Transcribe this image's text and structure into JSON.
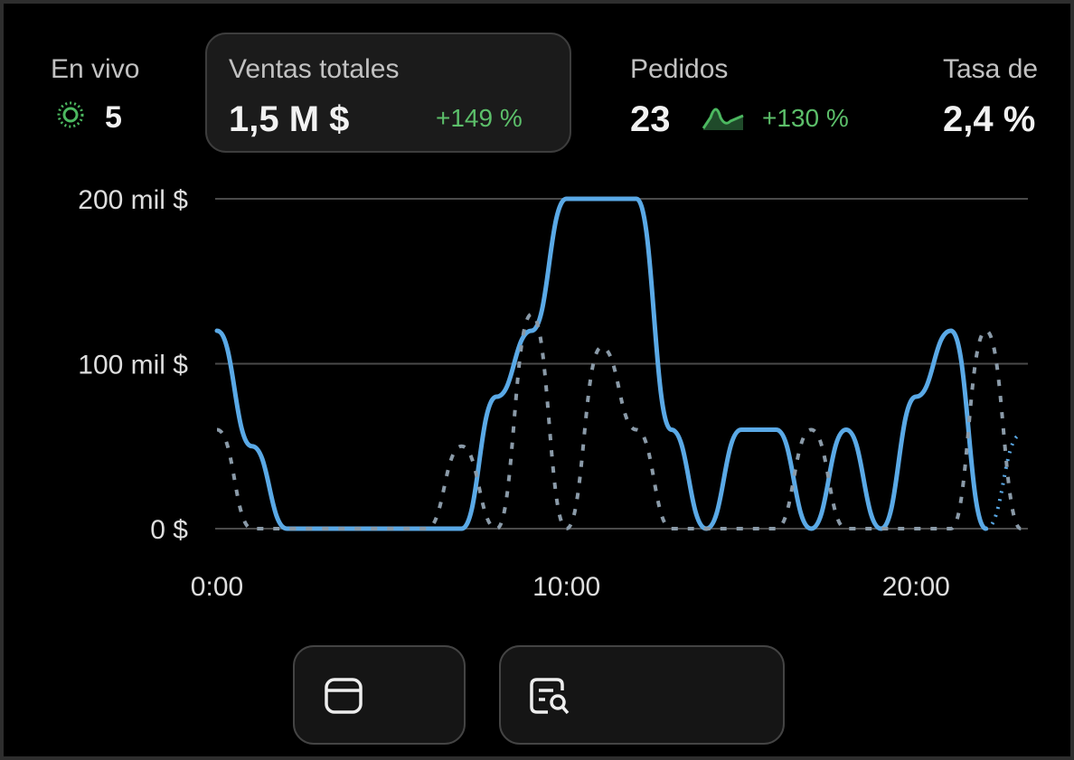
{
  "metrics": [
    {
      "label": "En vivo",
      "value": "5"
    },
    {
      "label": "Ventas totales",
      "value": "1,5 M $",
      "change": "+149 %"
    },
    {
      "label": "Pedidos",
      "value": "23",
      "change": "+130 %"
    },
    {
      "label": "Tasa de",
      "value": "2,4 %"
    }
  ],
  "chart_data": {
    "type": "line",
    "x": [
      0,
      1,
      2,
      3,
      4,
      5,
      6,
      7,
      8,
      9,
      10,
      11,
      12,
      13,
      14,
      15,
      16,
      17,
      18,
      19,
      20,
      21,
      22,
      23
    ],
    "xlim": [
      0,
      23.2
    ],
    "xticks": [
      {
        "value": 0,
        "label": "0:00"
      },
      {
        "value": 10,
        "label": "10:00"
      },
      {
        "value": 20,
        "label": "20:00"
      }
    ],
    "ylim": [
      0,
      200
    ],
    "yticks": [
      {
        "value": 0,
        "label": "0 $"
      },
      {
        "value": 100,
        "label": "100 mil $"
      },
      {
        "value": 200,
        "label": "200 mil $"
      }
    ],
    "grid": true,
    "series": [
      {
        "color": "#5aa9e6",
        "style": "solid",
        "values": [
          120,
          50,
          0,
          0,
          0,
          0,
          0,
          0,
          80,
          120,
          200,
          200,
          200,
          60,
          0,
          60,
          60,
          0,
          60,
          0,
          80,
          120,
          0,
          null
        ]
      },
      {
        "color": "#8a9aa8",
        "style": "dashed",
        "values": [
          60,
          0,
          0,
          0,
          0,
          0,
          0,
          50,
          0,
          130,
          0,
          110,
          60,
          0,
          0,
          0,
          0,
          60,
          0,
          0,
          0,
          0,
          120,
          0
        ]
      },
      {
        "color": "#5aa9e6",
        "style": "dotted",
        "values": [
          null,
          null,
          null,
          null,
          null,
          null,
          null,
          null,
          null,
          null,
          null,
          null,
          null,
          null,
          null,
          null,
          null,
          null,
          null,
          null,
          null,
          null,
          0,
          57
        ]
      }
    ]
  }
}
